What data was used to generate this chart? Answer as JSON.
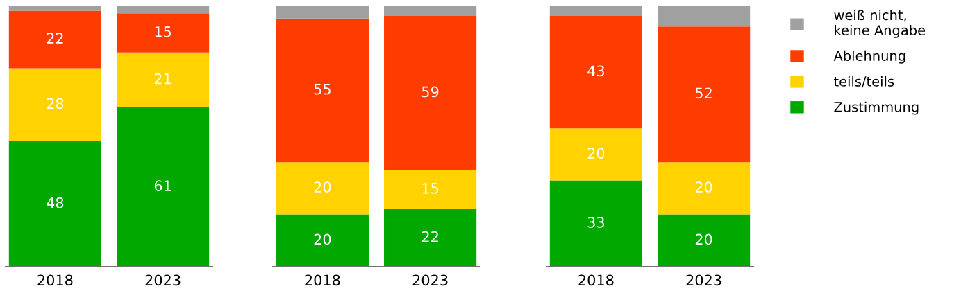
{
  "chart_data": [
    {
      "type": "bar",
      "stacked": true,
      "categories": [
        "2018",
        "2023"
      ],
      "series": [
        {
          "color": "#00a800",
          "values": [
            48,
            61
          ],
          "value_labels": [
            "48",
            "61"
          ]
        },
        {
          "color": "#ffd200",
          "values": [
            28,
            21
          ],
          "value_labels": [
            "28",
            "21"
          ]
        },
        {
          "color": "#ff3c00",
          "values": [
            22,
            15
          ],
          "value_labels": [
            "22",
            "15"
          ]
        },
        {
          "color": "#a0a0a0",
          "values": [
            2,
            3
          ],
          "value_labels": [
            null,
            null
          ]
        }
      ]
    },
    {
      "type": "bar",
      "stacked": true,
      "categories": [
        "2018",
        "2023"
      ],
      "series": [
        {
          "color": "#00a800",
          "values": [
            20,
            22
          ],
          "value_labels": [
            "20",
            "22"
          ]
        },
        {
          "color": "#ffd200",
          "values": [
            20,
            15
          ],
          "value_labels": [
            "20",
            "15"
          ]
        },
        {
          "color": "#ff3c00",
          "values": [
            55,
            59
          ],
          "value_labels": [
            "55",
            "59"
          ]
        },
        {
          "color": "#a0a0a0",
          "values": [
            5,
            4
          ],
          "value_labels": [
            null,
            null
          ]
        }
      ]
    },
    {
      "type": "bar",
      "stacked": true,
      "categories": [
        "2018",
        "2023"
      ],
      "legend": "right",
      "series": [
        {
          "name": "Zustimmung",
          "color": "#00a800",
          "values": [
            33,
            20
          ],
          "value_labels": [
            "33",
            "20"
          ]
        },
        {
          "name": "teils/teils",
          "color": "#ffd200",
          "values": [
            20,
            20
          ],
          "value_labels": [
            "20",
            "20"
          ]
        },
        {
          "name": "Ablehnung",
          "color": "#ff3c00",
          "values": [
            43,
            52
          ],
          "value_labels": [
            "43",
            "52"
          ]
        },
        {
          "name": "weiß nicht,\nkeine Angabe",
          "color": "#a0a0a0",
          "values": [
            4,
            8
          ],
          "value_labels": [
            null,
            null
          ]
        }
      ]
    }
  ]
}
